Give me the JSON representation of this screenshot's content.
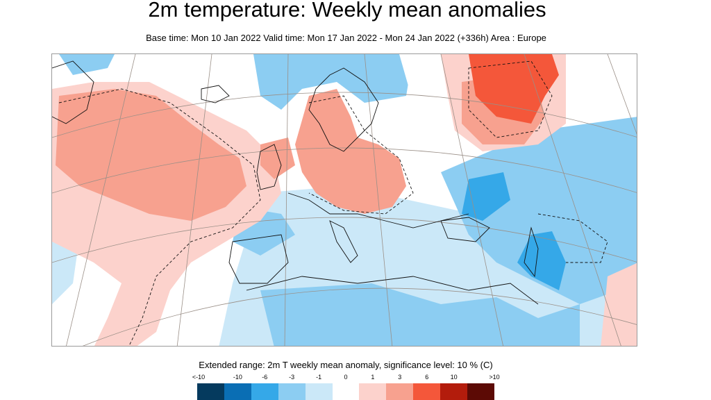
{
  "title": "2m temperature: Weekly mean anomalies",
  "subtitle": "Base time: Mon 10 Jan 2022 Valid time: Mon 17 Jan 2022 - Mon 24 Jan 2022 (+336h) Area : Europe",
  "legend": {
    "title": "Extended range: 2m T weekly mean anomaly, significance level: 10 % (C)",
    "labels": [
      "<-10",
      "-10",
      "-6",
      "-3",
      "-1",
      "0",
      "1",
      "3",
      "6",
      "10",
      ">10"
    ],
    "colors": [
      "#053a5e",
      "#0a6eb4",
      "#35a8e8",
      "#8ccdf2",
      "#cbe8f8",
      "#ffffff",
      "#fcd2cc",
      "#f7a18f",
      "#f4573a",
      "#b31c0c",
      "#5c0a05"
    ]
  },
  "map": {
    "area": "Europe",
    "anomaly_colors": {
      "neg_light": "#cbe8f8",
      "neg_mid": "#8ccdf2",
      "neg_strong": "#35a8e8",
      "pos_light": "#fcd2cc",
      "pos_mid": "#f7a18f",
      "pos_strong": "#f4573a"
    }
  }
}
